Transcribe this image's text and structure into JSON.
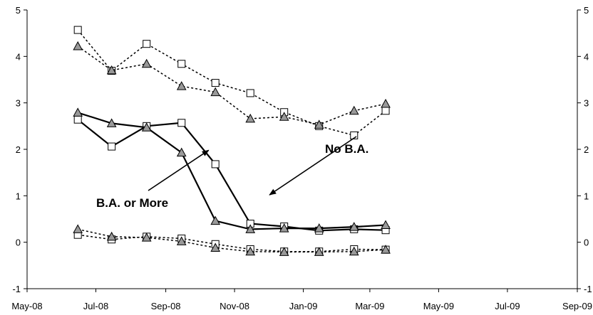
{
  "chart_data": {
    "type": "line",
    "x_dates": [
      "2008-06-15",
      "2008-07-15",
      "2008-08-15",
      "2008-09-15",
      "2008-10-15",
      "2008-11-15",
      "2008-12-15",
      "2009-01-15",
      "2009-02-15",
      "2009-03-15",
      "2009-04-15",
      "2009-05-15",
      "2009-06-15",
      "2009-07-15",
      "2009-08-15"
    ],
    "ylim": [
      -1,
      5
    ],
    "yticks": [
      "-1",
      "0",
      "1",
      "2",
      "3",
      "4",
      "5"
    ],
    "xticks": [
      {
        "label": "May-08",
        "date": "2008-05-01"
      },
      {
        "label": "Jul-08",
        "date": "2008-07-01"
      },
      {
        "label": "Sep-08",
        "date": "2008-09-01"
      },
      {
        "label": "Nov-08",
        "date": "2008-11-01"
      },
      {
        "label": "Jan-09",
        "date": "2009-01-01"
      },
      {
        "label": "Mar-09",
        "date": "2009-03-01"
      },
      {
        "label": "May-09",
        "date": "2009-05-01"
      },
      {
        "label": "Jul-09",
        "date": "2009-07-01"
      },
      {
        "label": "Sep-09",
        "date": "2009-09-01"
      }
    ],
    "grid": false,
    "series": [
      {
        "marker": "square",
        "style": "dotted",
        "color": "#000000",
        "fill": "#ffffff",
        "points": [
          [
            "2008-06-15",
            4.57
          ],
          [
            "2008-07-15",
            3.69
          ],
          [
            "2008-08-15",
            4.27
          ],
          [
            "2008-09-15",
            3.84
          ],
          [
            "2008-10-15",
            3.43
          ],
          [
            "2008-11-15",
            3.21
          ],
          [
            "2008-12-15",
            2.8
          ],
          [
            "2009-01-15",
            2.5
          ],
          [
            "2009-02-15",
            2.3
          ],
          [
            "2009-03-15",
            2.83
          ]
        ]
      },
      {
        "marker": "triangle",
        "style": "dotted",
        "color": "#000000",
        "fill": "#999999",
        "points": [
          [
            "2008-06-15",
            4.22
          ],
          [
            "2008-07-15",
            3.7
          ],
          [
            "2008-08-15",
            3.84
          ],
          [
            "2008-09-15",
            3.36
          ],
          [
            "2008-10-15",
            3.23
          ],
          [
            "2008-11-15",
            2.66
          ],
          [
            "2008-12-15",
            2.7
          ],
          [
            "2009-01-15",
            2.53
          ],
          [
            "2009-02-15",
            2.83
          ],
          [
            "2009-03-15",
            2.98
          ]
        ]
      },
      {
        "marker": "square",
        "style": "solid",
        "color": "#000000",
        "fill": "#ffffff",
        "points": [
          [
            "2008-06-15",
            2.64
          ],
          [
            "2008-07-15",
            2.06
          ],
          [
            "2008-08-15",
            2.5
          ],
          [
            "2008-09-15",
            2.57
          ],
          [
            "2008-10-15",
            1.68
          ],
          [
            "2008-11-15",
            0.4
          ],
          [
            "2008-12-15",
            0.34
          ],
          [
            "2009-01-15",
            0.25
          ],
          [
            "2009-02-15",
            0.28
          ],
          [
            "2009-03-15",
            0.26
          ]
        ]
      },
      {
        "marker": "triangle",
        "style": "solid",
        "color": "#000000",
        "fill": "#999999",
        "points": [
          [
            "2008-06-15",
            2.79
          ],
          [
            "2008-07-15",
            2.56
          ],
          [
            "2008-08-15",
            2.47
          ],
          [
            "2008-09-15",
            1.93
          ],
          [
            "2008-10-15",
            0.46
          ],
          [
            "2008-11-15",
            0.28
          ],
          [
            "2008-12-15",
            0.3
          ],
          [
            "2009-01-15",
            0.3
          ],
          [
            "2009-02-15",
            0.33
          ],
          [
            "2009-03-15",
            0.37
          ]
        ]
      },
      {
        "marker": "square",
        "style": "dotted",
        "color": "#000000",
        "fill": "#ffffff",
        "points": [
          [
            "2008-06-15",
            0.16
          ],
          [
            "2008-07-15",
            0.06
          ],
          [
            "2008-08-15",
            0.12
          ],
          [
            "2008-09-15",
            0.08
          ],
          [
            "2008-10-15",
            -0.04
          ],
          [
            "2008-11-15",
            -0.15
          ],
          [
            "2008-12-15",
            -0.2
          ],
          [
            "2009-01-15",
            -0.2
          ],
          [
            "2009-02-15",
            -0.15
          ],
          [
            "2009-03-15",
            -0.16
          ]
        ]
      },
      {
        "marker": "triangle",
        "style": "dotted",
        "color": "#000000",
        "fill": "#999999",
        "points": [
          [
            "2008-06-15",
            0.28
          ],
          [
            "2008-07-15",
            0.12
          ],
          [
            "2008-08-15",
            0.1
          ],
          [
            "2008-09-15",
            0.02
          ],
          [
            "2008-10-15",
            -0.12
          ],
          [
            "2008-11-15",
            -0.2
          ],
          [
            "2008-12-15",
            -0.21
          ],
          [
            "2009-01-15",
            -0.21
          ],
          [
            "2009-02-15",
            -0.2
          ],
          [
            "2009-03-15",
            -0.16
          ]
        ]
      }
    ],
    "annotations": [
      {
        "text": "No B.A.",
        "arrow_to": {
          "date": "2008-12-02",
          "value": 1.02
        }
      },
      {
        "text": "B.A. or More",
        "arrow_to": {
          "date": "2008-10-09",
          "value": 1.98
        }
      }
    ]
  }
}
